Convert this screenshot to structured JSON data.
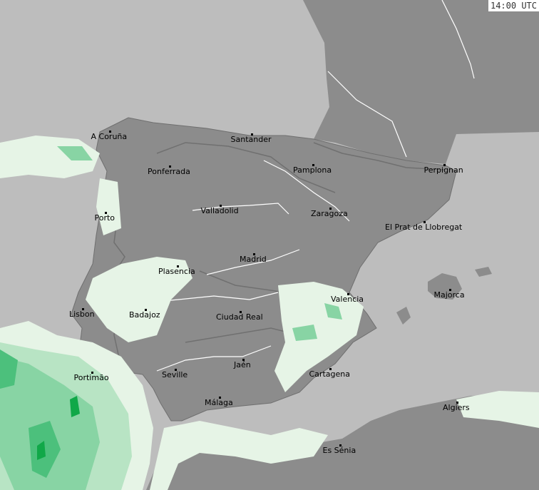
{
  "map": {
    "timestamp": "14:00 UTC",
    "colors": {
      "sea": "#bdbdbd",
      "land": "#8c8c8c",
      "border": "#6f6f6f",
      "river": "#ffffff",
      "rain_light": "#e6f4e6",
      "rain_1": "#b8e4c4",
      "rain_2": "#88d4a4",
      "rain_3": "#4cc07c",
      "rain_4": "#10a848"
    },
    "cities": [
      "A Coruña",
      "Santander",
      "Ponferrada",
      "Pamplona",
      "Perpignan",
      "Valladolid",
      "Zaragoza",
      "Porto",
      "El Prat de Llobregat",
      "Madrid",
      "Plasencia",
      "Valencia",
      "Majorca",
      "Lisbon",
      "Badajoz",
      "Ciudad Real",
      "Jaén",
      "Portimão",
      "Seville",
      "Cartagena",
      "Málaga",
      "Algiers",
      "Es Sénia"
    ]
  }
}
